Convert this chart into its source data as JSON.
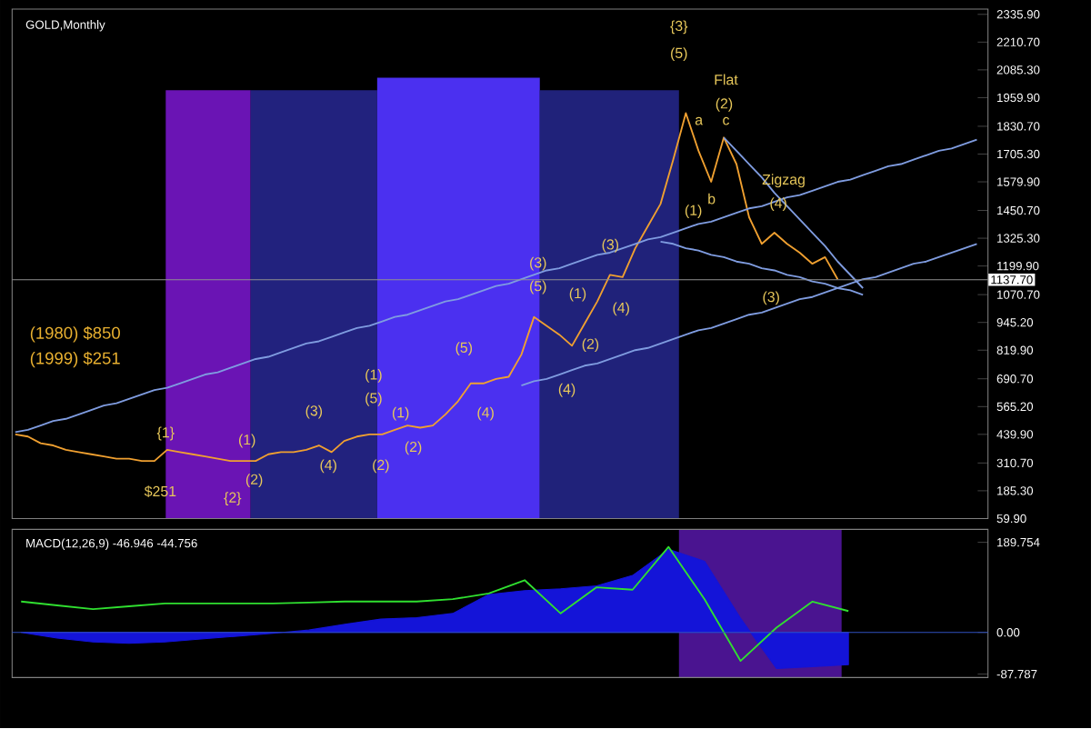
{
  "chart_data": [
    {
      "type": "line",
      "title": "GOLD,Monthly",
      "categories": [
        null,
        null,
        null,
        null,
        null,
        null,
        null,
        null,
        null,
        null,
        null,
        null,
        null,
        null,
        null,
        null,
        null,
        null,
        null,
        null,
        null,
        null,
        null,
        null,
        null,
        null,
        null,
        null,
        null,
        null,
        null,
        null,
        null,
        null,
        null,
        null,
        null,
        null,
        null,
        null,
        null,
        null,
        null,
        null,
        null,
        null,
        null,
        null,
        null,
        null,
        null,
        null,
        null,
        null,
        null,
        null,
        null,
        null,
        null,
        null,
        null,
        null,
        null,
        null,
        null,
        null,
        null,
        null,
        null,
        null,
        null,
        null,
        null,
        null,
        null,
        null,
        null
      ],
      "ylim": [
        59.9,
        2360
      ],
      "yticks": [
        {
          "value": 59.9,
          "label": "59.90"
        },
        {
          "value": 185.3,
          "label": "185.30"
        },
        {
          "value": 310.7,
          "label": "310.70"
        },
        {
          "value": 439.9,
          "label": "439.90"
        },
        {
          "value": 565.2,
          "label": "565.20"
        },
        {
          "value": 690.7,
          "label": "690.70"
        },
        {
          "value": 819.9,
          "label": "819.90"
        },
        {
          "value": 945.2,
          "label": "945.20"
        },
        {
          "value": 1070.7,
          "label": "1070.70"
        },
        {
          "value": 1199.9,
          "label": "1199.90"
        },
        {
          "value": 1325.3,
          "label": "1325.30"
        },
        {
          "value": 1450.7,
          "label": "1450.70"
        },
        {
          "value": 1579.9,
          "label": "1579.90"
        },
        {
          "value": 1705.3,
          "label": "1705.30"
        },
        {
          "value": 1830.7,
          "label": "1830.70"
        },
        {
          "value": 1959.9,
          "label": "1959.90"
        },
        {
          "value": 2085.3,
          "label": "2085.30"
        },
        {
          "value": 2210.7,
          "label": "2210.70"
        },
        {
          "value": 2335.9,
          "label": "2335.90"
        }
      ],
      "tick_labels": "y",
      "ref_lines": [
        {
          "axis": "y",
          "value": 1137.7,
          "label": "1137.70",
          "color": "#909090"
        }
      ],
      "series": [
        {
          "type": "line",
          "color": "#f0a030",
          "values": [
            440,
            430,
            400,
            390,
            370,
            360,
            350,
            340,
            330,
            330,
            320,
            320,
            370,
            360,
            350,
            340,
            330,
            320,
            320,
            320,
            350,
            360,
            360,
            370,
            390,
            360,
            410,
            430,
            440,
            440,
            460,
            480,
            470,
            480,
            530,
            590,
            670,
            670,
            690,
            700,
            800,
            970,
            930,
            890,
            840,
            940,
            1040,
            1160,
            1150,
            1280,
            1380,
            1480,
            1680,
            1890,
            1720,
            1580,
            1780,
            1660,
            1420,
            1300,
            1350,
            1300,
            1260,
            1210,
            1240,
            1140,
            null,
            null,
            null,
            null,
            null,
            null,
            null,
            null,
            null,
            null,
            null
          ]
        },
        {
          "type": "line",
          "color": "#7f9ce0",
          "values": [
            450,
            460,
            480,
            500,
            510,
            530,
            550,
            570,
            580,
            600,
            620,
            640,
            650,
            670,
            690,
            710,
            720,
            740,
            760,
            780,
            790,
            810,
            830,
            850,
            860,
            880,
            900,
            920,
            930,
            950,
            970,
            980,
            1000,
            1020,
            1040,
            1050,
            1070,
            1090,
            1110,
            1120,
            1140,
            1160,
            1180,
            1190,
            1210,
            1230,
            1250,
            1260,
            1280,
            1300,
            1320,
            1330,
            1350,
            1370,
            1390,
            1400,
            1420,
            1440,
            1460,
            1470,
            1490,
            1510,
            1520,
            1540,
            1560,
            1580,
            1590,
            1610,
            1630,
            1650,
            1660,
            1680,
            1700,
            1720,
            1730,
            1750,
            1770
          ]
        },
        {
          "type": "line",
          "color": "#7f9ce0",
          "values": [
            null,
            null,
            null,
            null,
            null,
            null,
            null,
            null,
            null,
            null,
            null,
            null,
            null,
            null,
            null,
            null,
            null,
            null,
            null,
            null,
            null,
            null,
            null,
            null,
            null,
            null,
            null,
            null,
            null,
            null,
            null,
            null,
            null,
            null,
            null,
            null,
            null,
            null,
            null,
            null,
            660,
            680,
            690,
            710,
            730,
            750,
            760,
            780,
            800,
            820,
            830,
            850,
            870,
            890,
            910,
            920,
            940,
            960,
            980,
            990,
            1010,
            1030,
            1050,
            1060,
            1080,
            1100,
            1120,
            1140,
            1150,
            1170,
            1190,
            1210,
            1220,
            1240,
            1260,
            1280,
            1300
          ]
        },
        {
          "type": "line",
          "color": "#7f9ce0",
          "values": [
            null,
            null,
            null,
            null,
            null,
            null,
            null,
            null,
            null,
            null,
            null,
            null,
            null,
            null,
            null,
            null,
            null,
            null,
            null,
            null,
            null,
            null,
            null,
            null,
            null,
            null,
            null,
            null,
            null,
            null,
            null,
            null,
            null,
            null,
            null,
            null,
            null,
            null,
            null,
            null,
            null,
            null,
            null,
            null,
            null,
            null,
            null,
            null,
            null,
            null,
            null,
            null,
            null,
            null,
            null,
            null,
            1780,
            1720,
            1660,
            1600,
            1530,
            1470,
            1410,
            1350,
            1290,
            1220,
            1160,
            1100,
            null,
            null,
            null,
            null,
            null,
            null,
            null,
            null,
            null
          ]
        },
        {
          "type": "line",
          "color": "#7f9ce0",
          "values": [
            null,
            null,
            null,
            null,
            null,
            null,
            null,
            null,
            null,
            null,
            null,
            null,
            null,
            null,
            null,
            null,
            null,
            null,
            null,
            null,
            null,
            null,
            null,
            null,
            null,
            null,
            null,
            null,
            null,
            null,
            null,
            null,
            null,
            null,
            null,
            null,
            null,
            null,
            null,
            null,
            null,
            null,
            null,
            null,
            null,
            null,
            null,
            null,
            null,
            null,
            null,
            1310,
            1300,
            1280,
            1270,
            1250,
            1240,
            1220,
            1210,
            1190,
            1180,
            1160,
            1150,
            1130,
            1120,
            1100,
            1090,
            1070,
            null,
            null,
            null,
            null,
            null,
            null,
            null,
            null,
            null
          ]
        }
      ],
      "annotations": [
        "(1980) $850",
        "(1999) $251",
        "{1}",
        "$251",
        "{2}",
        "(1)",
        "(2)",
        "(3)",
        "(4)",
        "(1)",
        "(5)",
        "(2)",
        "(1)",
        "(2)",
        "(5)",
        "(4)",
        "(3)",
        "(5)",
        "(1)",
        "(2)",
        "(3)",
        "(4)",
        "(4)",
        "{3}",
        "(5)",
        "Flat",
        "(2)",
        "a",
        "c",
        "b",
        "(1)",
        "Zigzag",
        "(4)",
        "(3)"
      ]
    },
    {
      "type": "line",
      "title": "MACD(12,26,9) -46.946 -44.756",
      "categories": [
        null,
        null,
        null,
        null,
        null,
        null,
        null,
        null,
        null,
        null,
        null,
        null,
        null,
        null,
        null,
        null,
        null,
        null,
        null,
        null,
        null,
        null,
        null,
        null,
        null,
        null,
        null
      ],
      "ylim": [
        -95,
        217
      ],
      "yticks": [
        -87.787,
        {
          "value": 0,
          "label": "0.00"
        },
        189.754
      ],
      "tick_labels": "y",
      "ref_lines": [
        {
          "axis": "y",
          "value": 0,
          "color": "#3050c0"
        }
      ],
      "series": [
        {
          "type": "area",
          "color": "#1414d8",
          "values": [
            0,
            -12,
            -20,
            -23,
            -20,
            -14,
            -8,
            -2,
            5,
            17,
            28,
            31,
            40,
            80,
            88,
            92,
            98,
            120,
            175,
            150,
            30,
            -76,
            -72,
            -68,
            null,
            null,
            null
          ]
        },
        {
          "type": "line",
          "color": "#30e030",
          "values": [
            65,
            57,
            49,
            55,
            61,
            61,
            61,
            61,
            63,
            65,
            65,
            65,
            70,
            82,
            110,
            40,
            95,
            90,
            180,
            70,
            -60,
            10,
            65,
            45,
            null,
            null,
            null
          ]
        }
      ]
    }
  ]
}
